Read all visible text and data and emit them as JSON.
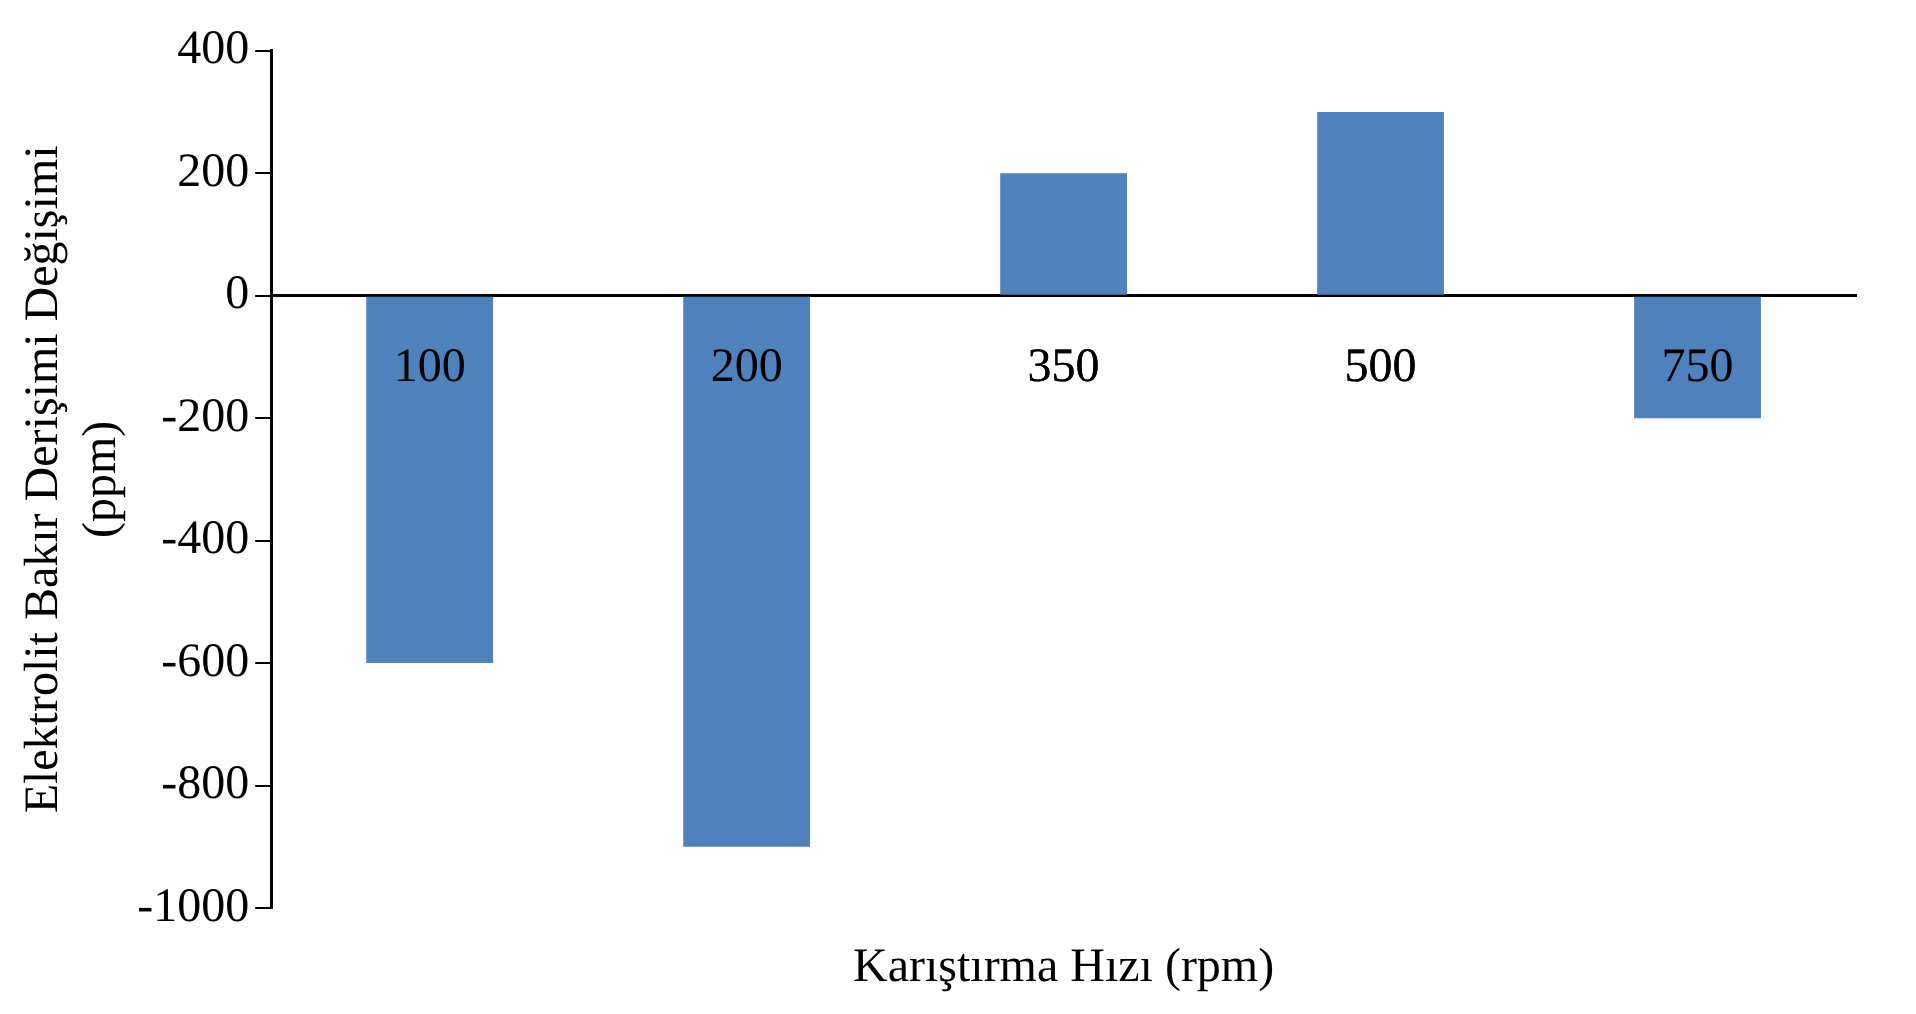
{
  "chart_data": {
    "type": "bar",
    "xlabel": "Karıştırma Hızı (rpm)",
    "ylabel": "Elektrolit Bakır Derişimi Değişimi (ppm)",
    "categories": [
      "100",
      "200",
      "350",
      "500",
      "750"
    ],
    "values": [
      -600,
      -900,
      200,
      300,
      -200
    ],
    "color": "#4f81bd",
    "ylim": [
      -1000,
      400
    ],
    "yticks": [
      -1000,
      -800,
      -600,
      -400,
      -200,
      0,
      200,
      400
    ],
    "grid": false,
    "legend": false
  }
}
